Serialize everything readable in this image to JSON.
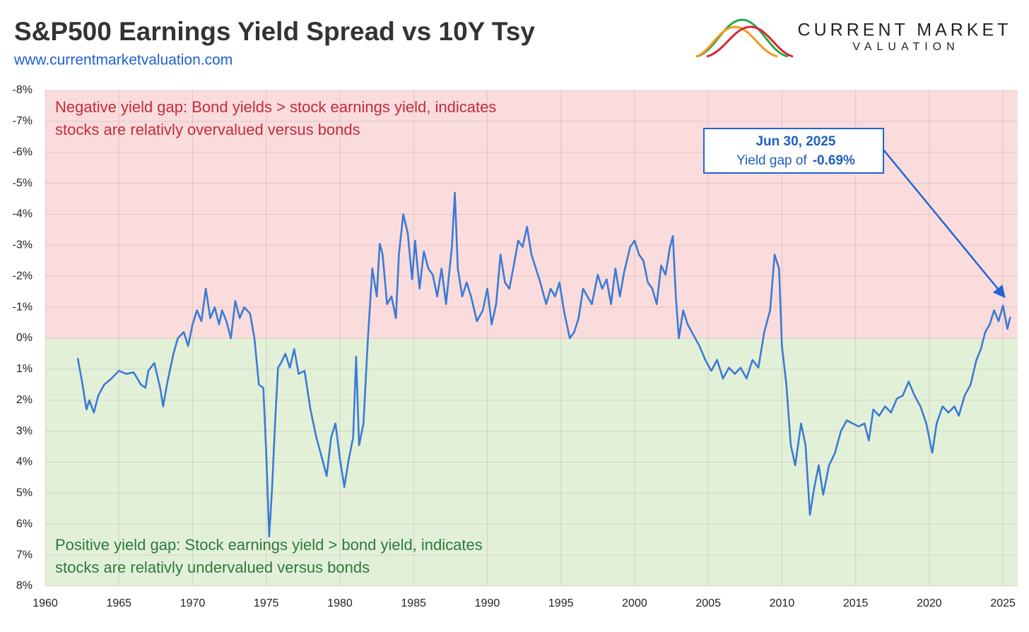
{
  "chart_data": {
    "type": "line",
    "title": "S&P500 Earnings Yield Spread vs 10Y Tsy",
    "subtitle": "www.currentmarketvaluation.com",
    "logo": {
      "top": "CURRENT MARKET",
      "bottom": "VALUATION"
    },
    "color": "#3a7bd5",
    "grid": true,
    "invert_y": true,
    "region_colors": {
      "above": "#fbdcdc",
      "below": "#e3f0d8"
    },
    "regions": [
      {
        "color": "#c42a3c",
        "lines": [
          "Negative yield gap: Bond yields > stock earnings yield,  indicates",
          "stocks are relativly overvalued versus bonds"
        ]
      },
      {
        "color": "#2b7a3f",
        "lines": [
          "Positive yield gap: Stock earnings yield > bond yield, indicates",
          "stocks are relativly undervalued versus bonds"
        ]
      }
    ],
    "callout": {
      "date": "Jun 30, 2025",
      "text": "Yield gap of",
      "value": -0.69,
      "label": "-0.69%"
    },
    "xlim": [
      1960,
      2026
    ],
    "xticks": [
      1960,
      1965,
      1970,
      1975,
      1980,
      1985,
      1990,
      1995,
      2000,
      2005,
      2010,
      2015,
      2020,
      2025
    ],
    "ylim": [
      -8,
      8
    ],
    "yticks": [
      {
        "value": -8,
        "label": "-8%"
      },
      {
        "value": -7,
        "label": "-7%"
      },
      {
        "value": -6,
        "label": "-6%"
      },
      {
        "value": -5,
        "label": "-5%"
      },
      {
        "value": -4,
        "label": "-4%"
      },
      {
        "value": -3,
        "label": "-3%"
      },
      {
        "value": -2,
        "label": "-2%"
      },
      {
        "value": -1,
        "label": "-1%"
      },
      {
        "value": 0,
        "label": "0%"
      },
      {
        "value": 1,
        "label": "1%"
      },
      {
        "value": 2,
        "label": "2%"
      },
      {
        "value": 3,
        "label": "3%"
      },
      {
        "value": 4,
        "label": "4%"
      },
      {
        "value": 5,
        "label": "5%"
      },
      {
        "value": 6,
        "label": "6%"
      },
      {
        "value": 7,
        "label": "7%"
      },
      {
        "value": 8,
        "label": "8%"
      }
    ],
    "x": [
      1962.2,
      1962.5,
      1962.8,
      1963.0,
      1963.3,
      1963.6,
      1964.0,
      1964.5,
      1965.0,
      1965.5,
      1966.0,
      1966.5,
      1966.8,
      1967.0,
      1967.4,
      1967.8,
      1968.0,
      1968.3,
      1968.7,
      1969.0,
      1969.4,
      1969.7,
      1970.0,
      1970.3,
      1970.6,
      1970.9,
      1971.2,
      1971.5,
      1971.8,
      1972.0,
      1972.3,
      1972.6,
      1972.9,
      1973.2,
      1973.5,
      1973.9,
      1974.2,
      1974.5,
      1974.8,
      1975.0,
      1975.2,
      1975.4,
      1975.6,
      1975.8,
      1976.0,
      1976.3,
      1976.6,
      1976.9,
      1977.2,
      1977.6,
      1978.0,
      1978.4,
      1978.8,
      1979.1,
      1979.4,
      1979.7,
      1980.0,
      1980.3,
      1980.6,
      1980.9,
      1981.1,
      1981.3,
      1981.6,
      1981.9,
      1982.2,
      1982.5,
      1982.7,
      1982.9,
      1983.2,
      1983.5,
      1983.8,
      1984.0,
      1984.3,
      1984.6,
      1984.9,
      1985.1,
      1985.4,
      1985.7,
      1986.0,
      1986.3,
      1986.6,
      1986.9,
      1987.2,
      1987.6,
      1987.8,
      1988.0,
      1988.3,
      1988.6,
      1988.9,
      1989.3,
      1989.7,
      1990.0,
      1990.3,
      1990.6,
      1990.9,
      1991.2,
      1991.5,
      1991.8,
      1992.1,
      1992.4,
      1992.7,
      1993.0,
      1993.3,
      1993.6,
      1994.0,
      1994.3,
      1994.6,
      1994.9,
      1995.2,
      1995.6,
      1995.9,
      1996.2,
      1996.5,
      1996.8,
      1997.1,
      1997.5,
      1997.8,
      1998.1,
      1998.4,
      1998.7,
      1999.0,
      1999.3,
      1999.7,
      2000.0,
      2000.3,
      2000.6,
      2000.9,
      2001.2,
      2001.5,
      2001.8,
      2002.1,
      2002.4,
      2002.6,
      2002.8,
      2003.0,
      2003.3,
      2003.6,
      2004.0,
      2004.4,
      2004.8,
      2005.2,
      2005.6,
      2006.0,
      2006.4,
      2006.8,
      2007.2,
      2007.6,
      2008.0,
      2008.4,
      2008.8,
      2009.2,
      2009.5,
      2009.8,
      2010.0,
      2010.3,
      2010.6,
      2010.9,
      2011.3,
      2011.6,
      2011.9,
      2012.2,
      2012.5,
      2012.8,
      2013.2,
      2013.6,
      2014.0,
      2014.4,
      2014.8,
      2015.2,
      2015.6,
      2015.9,
      2016.2,
      2016.6,
      2017.0,
      2017.4,
      2017.8,
      2018.2,
      2018.6,
      2019.0,
      2019.4,
      2019.8,
      2020.2,
      2020.5,
      2020.9,
      2021.3,
      2021.7,
      2022.0,
      2022.4,
      2022.8,
      2023.2,
      2023.5,
      2023.8,
      2024.1,
      2024.4,
      2024.7,
      2025.0,
      2025.3,
      2025.5
    ],
    "values": [
      0.64,
      1.4,
      2.3,
      2.0,
      2.4,
      1.85,
      1.5,
      1.3,
      1.05,
      1.15,
      1.1,
      1.5,
      1.6,
      1.05,
      0.8,
      1.6,
      2.2,
      1.4,
      0.5,
      0.0,
      -0.2,
      0.25,
      -0.45,
      -0.9,
      -0.55,
      -1.6,
      -0.65,
      -1.0,
      -0.45,
      -0.9,
      -0.55,
      0.0,
      -1.2,
      -0.65,
      -1.0,
      -0.8,
      0.0,
      1.5,
      1.6,
      3.7,
      6.4,
      4.8,
      2.75,
      0.95,
      0.8,
      0.5,
      0.95,
      0.35,
      1.15,
      1.05,
      2.3,
      3.2,
      3.9,
      4.45,
      3.2,
      2.75,
      3.9,
      4.8,
      3.9,
      3.2,
      0.6,
      3.45,
      2.75,
      0.0,
      -2.25,
      -1.35,
      -3.05,
      -2.7,
      -1.1,
      -1.35,
      -0.65,
      -2.7,
      -4.0,
      -3.4,
      -1.9,
      -3.15,
      -1.6,
      -2.8,
      -2.25,
      -2.05,
      -1.35,
      -2.25,
      -1.1,
      -2.95,
      -4.7,
      -2.25,
      -1.35,
      -1.8,
      -1.35,
      -0.55,
      -0.9,
      -1.6,
      -0.45,
      -1.1,
      -2.7,
      -1.8,
      -1.6,
      -2.35,
      -3.15,
      -2.95,
      -3.6,
      -2.7,
      -2.25,
      -1.8,
      -1.1,
      -1.6,
      -1.35,
      -1.8,
      -0.9,
      0.0,
      -0.2,
      -0.65,
      -1.6,
      -1.35,
      -1.1,
      -2.05,
      -1.6,
      -1.9,
      -1.1,
      -2.25,
      -1.35,
      -2.15,
      -2.95,
      -3.15,
      -2.7,
      -2.5,
      -1.8,
      -1.6,
      -1.1,
      -2.35,
      -2.05,
      -2.95,
      -3.3,
      -1.35,
      0.0,
      -0.9,
      -0.45,
      -0.1,
      0.25,
      0.7,
      1.05,
      0.7,
      1.3,
      0.95,
      1.15,
      0.95,
      1.3,
      0.7,
      0.95,
      -0.2,
      -0.9,
      -2.7,
      -2.25,
      0.25,
      1.5,
      3.45,
      4.1,
      2.75,
      3.45,
      5.7,
      4.8,
      4.1,
      5.05,
      4.1,
      3.7,
      3.0,
      2.65,
      2.75,
      2.85,
      2.75,
      3.3,
      2.3,
      2.5,
      2.2,
      2.4,
      1.95,
      1.85,
      1.4,
      1.85,
      2.2,
      2.75,
      3.7,
      2.75,
      2.2,
      2.4,
      2.2,
      2.5,
      1.85,
      1.5,
      0.7,
      0.35,
      -0.2,
      -0.45,
      -0.9,
      -0.55,
      -1.05,
      -0.3,
      -0.69
    ]
  }
}
